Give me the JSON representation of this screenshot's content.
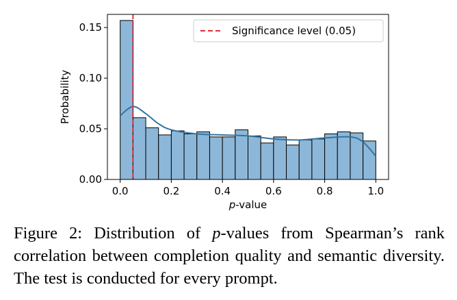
{
  "chart_data": {
    "type": "histogram",
    "xlabel_italic": "p",
    "xlabel_rest": "-value",
    "ylabel": "Probability",
    "xlim": [
      -0.05,
      1.05
    ],
    "ylim": [
      0,
      0.163
    ],
    "x_ticks": [
      "0.0",
      "0.2",
      "0.4",
      "0.6",
      "0.8",
      "1.0"
    ],
    "y_ticks": [
      "0.00",
      "0.05",
      "0.10",
      "0.15"
    ],
    "bin_edges": [
      0.0,
      0.05,
      0.1,
      0.15,
      0.2,
      0.25,
      0.3,
      0.35,
      0.4,
      0.45,
      0.5,
      0.55,
      0.6,
      0.65,
      0.7,
      0.75,
      0.8,
      0.85,
      0.9,
      0.95,
      1.0
    ],
    "values": [
      0.157,
      0.061,
      0.051,
      0.044,
      0.048,
      0.045,
      0.047,
      0.042,
      0.042,
      0.049,
      0.043,
      0.036,
      0.042,
      0.034,
      0.039,
      0.04,
      0.045,
      0.047,
      0.046,
      0.038
    ],
    "kde": {
      "x": [
        0.0,
        0.05,
        0.1,
        0.15,
        0.2,
        0.3,
        0.4,
        0.5,
        0.6,
        0.7,
        0.8,
        0.9,
        0.95,
        1.0
      ],
      "y": [
        0.063,
        0.072,
        0.065,
        0.055,
        0.049,
        0.045,
        0.044,
        0.043,
        0.04,
        0.039,
        0.041,
        0.042,
        0.037,
        0.023
      ]
    },
    "threshold": {
      "x": 0.05,
      "label": "Significance level (0.05)"
    },
    "legend_position": "top-right",
    "colors": {
      "bar_fill": "#8db7d8",
      "bar_edge": "#000000",
      "kde_line": "#3274a1",
      "threshold_line": "#e8283a"
    }
  },
  "caption": {
    "lead": "Figure 2: Distribution of ",
    "italic": "p",
    "rest": "-values from Spearman’s rank correlation between completion quality and semantic diversity. The test is conducted for every prompt."
  }
}
